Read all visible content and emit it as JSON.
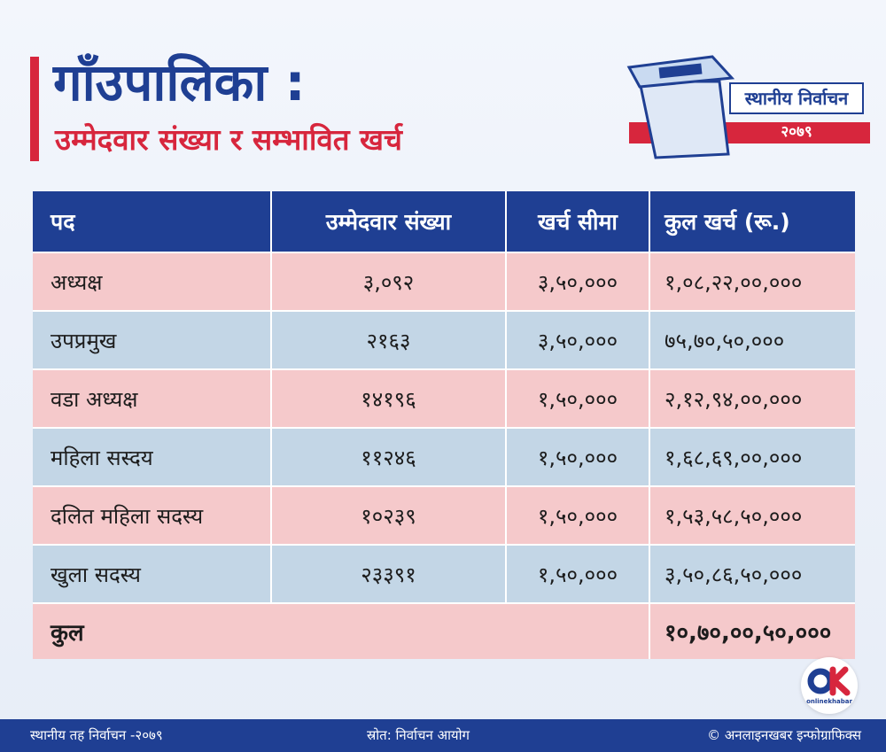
{
  "header": {
    "title": "गाँउपालिका :",
    "subtitle": "उम्मेदवार संख्या र सम्भावित खर्च"
  },
  "badge": {
    "line1": "स्थानीय निर्वाचन",
    "line2": "२०७९"
  },
  "table": {
    "columns": [
      "पद",
      "उम्मेदवार संख्या",
      "खर्च सीमा",
      "कुल खर्च (रू.)"
    ],
    "rows": [
      {
        "post": "अध्यक्ष",
        "candidates": "३,०९२",
        "limit": "३,५०,०००",
        "total": "१,०८,२२,००,०००"
      },
      {
        "post": "उपप्रमुख",
        "candidates": "२१६३",
        "limit": "३,५०,०००",
        "total": "७५,७०,५०,०००"
      },
      {
        "post": "वडा अध्यक्ष",
        "candidates": "१४१९६",
        "limit": "१,५०,०००",
        "total": "२,१२,९४,००,०००"
      },
      {
        "post": "महिला सस्दय",
        "candidates": "११२४६",
        "limit": "१,५०,०००",
        "total": "१,६८,६९,००,०००"
      },
      {
        "post": "दलित महिला सदस्य",
        "candidates": "१०२३९",
        "limit": "१,५०,०००",
        "total": "१,५३,५८,५०,०००"
      },
      {
        "post": "खुला सदस्य",
        "candidates": "२३३९१",
        "limit": "१,५०,०००",
        "total": "३,५०,८६,५०,०००"
      }
    ],
    "total_label": "कुल",
    "total_value": "१०,७०,००,५०,०००"
  },
  "logo": {
    "text": "onlinekhabar"
  },
  "footer": {
    "left": "स्थानीय तह निर्वाचन -२०७९",
    "center": "स्रोत: निर्वाचन आयोग",
    "right": "© अनलाइनखबर इन्फोग्राफिक्स"
  },
  "colors": {
    "navy": "#1f3f93",
    "red": "#d7263d",
    "pink_row": "#f5c9cb",
    "blue_row": "#c3d6e6"
  }
}
